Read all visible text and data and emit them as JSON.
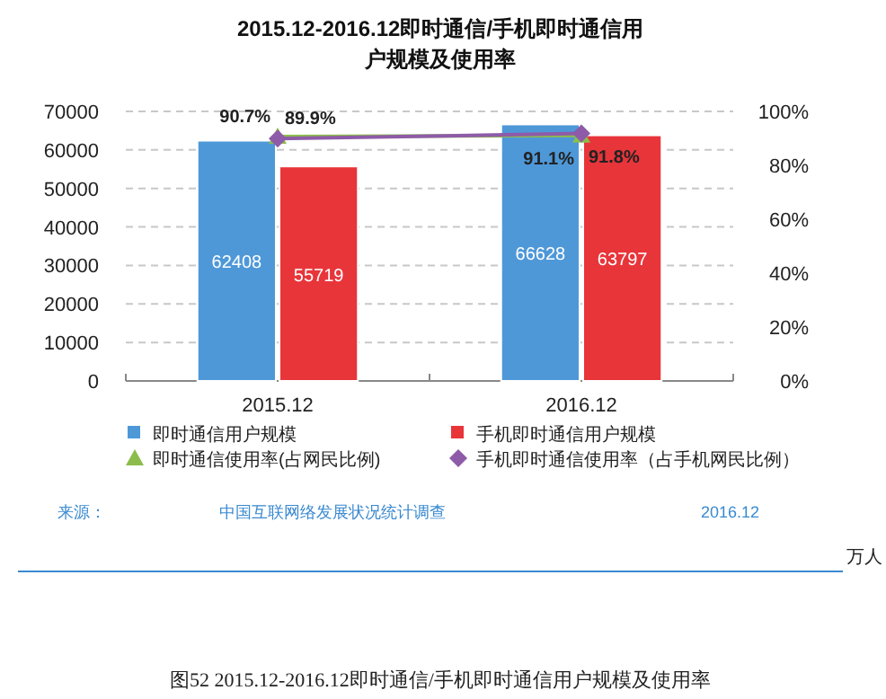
{
  "chart_data": {
    "type": "bar",
    "title": "2015.12-2016.12即时通信/手机即时通信用户规模及使用率",
    "categories": [
      "2015.12",
      "2016.12"
    ],
    "series": [
      {
        "name": "即时通信用户规模",
        "color": "#4e98d8",
        "values": [
          62408,
          66628
        ]
      },
      {
        "name": "手机即时通信用户规模",
        "color": "#e8353a",
        "values": [
          55719,
          63797
        ]
      },
      {
        "name": "即时通信使用率(占网民比例)",
        "type": "line",
        "axis": "y2",
        "marker": "triangle",
        "color": "#8cbd4c",
        "values": [
          90.7,
          91.1
        ],
        "value_labels": [
          "90.7%",
          "91.1%"
        ]
      },
      {
        "name": "手机即时通信使用率（占手机网民比例）",
        "type": "line",
        "axis": "y2",
        "marker": "diamond",
        "color": "#8e5ba8",
        "values": [
          89.9,
          91.8
        ],
        "value_labels": [
          "89.9%",
          "91.8%"
        ]
      }
    ],
    "ylim": [
      0,
      70000
    ],
    "yticks": [
      0,
      10000,
      20000,
      30000,
      40000,
      50000,
      60000,
      70000
    ],
    "y2lim": [
      0,
      100
    ],
    "y2ticks": [
      {
        "value": 0,
        "label": "0%"
      },
      {
        "value": 20,
        "label": "20%"
      },
      {
        "value": 40,
        "label": "40%"
      },
      {
        "value": 60,
        "label": "60%"
      },
      {
        "value": 80,
        "label": "80%"
      },
      {
        "value": 100,
        "label": "100%"
      }
    ],
    "data_labels": true,
    "grid": "y",
    "legend": "bottom",
    "annotations": [
      "来源：",
      "中国互联网络发展状况统计调查",
      "2016.12",
      "万人",
      "图52  2015.12-2016.12即时通信/手机即时通信用户规模及使用率"
    ]
  }
}
